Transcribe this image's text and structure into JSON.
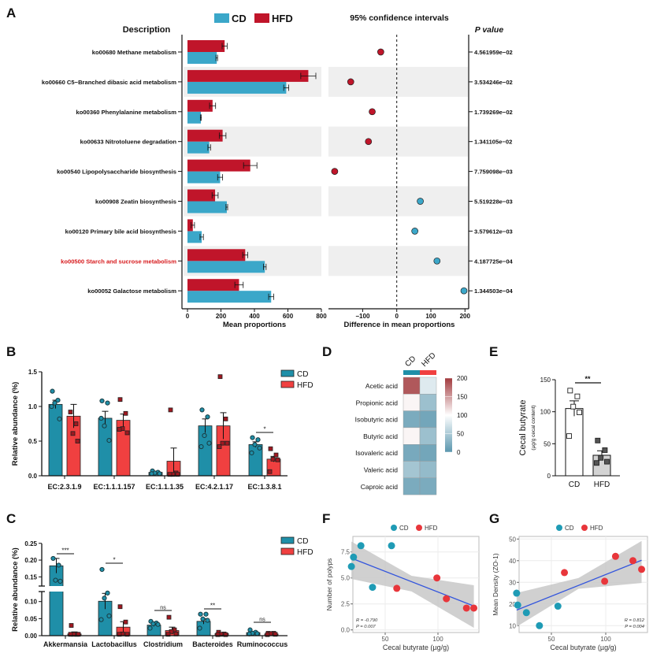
{
  "figure": {
    "panel_labels": [
      "A",
      "B",
      "C",
      "D",
      "E",
      "F",
      "G"
    ]
  },
  "chart_data": [
    {
      "type": "bar",
      "orientation": "horizontal",
      "title": "Description",
      "categories": [
        "ko00680 Methane metabolism",
        "ko00660 C5−Branched dibasic acid metabolism",
        "ko00360 Phenylalanine metabolism",
        "ko00633 Nitrotoluene degradation",
        "ko00540 Lipopolysaccharide biosynthesis",
        "ko00908 Zeatin biosynthesis",
        "ko00120 Primary bile acid biosynthesis",
        "ko00500 Starch and sucrose metabolism",
        "ko00052 Galactose metabolism"
      ],
      "highlight_index": 7,
      "highlight_color": "#d7191c",
      "series": [
        {
          "name": "CD",
          "color": "#3ba7c9",
          "values": [
            175,
            590,
            80,
            130,
            195,
            235,
            85,
            462,
            500
          ],
          "errors": [
            5,
            15,
            3,
            8,
            15,
            5,
            10,
            8,
            15
          ]
        },
        {
          "name": "HFD",
          "color": "#c0152a",
          "values": [
            222,
            722,
            150,
            210,
            375,
            165,
            32,
            345,
            308
          ],
          "errors": [
            15,
            45,
            18,
            20,
            40,
            18,
            10,
            15,
            25
          ]
        }
      ],
      "xlabel": "Mean proportions",
      "xticks": [
        "0",
        "200",
        "400",
        "600",
        "800"
      ],
      "xlim": [
        0,
        800
      ],
      "shaded_rows": true
    },
    {
      "type": "scatter",
      "title": "95% confidence intervals",
      "xlabel": "Difference in mean proportions",
      "xticks": [
        "−100",
        "0",
        "100",
        "200"
      ],
      "xlim": [
        -200,
        210
      ],
      "values": [
        -47,
        -135,
        -72,
        -83,
        -182,
        69,
        53,
        118,
        197
      ],
      "reference_line": 0,
      "p_value_title": "P value",
      "p_values": [
        "4.561959e−02",
        "3.534246e−02",
        "1.739269e−02",
        "1.341105e−02",
        "7.759098e−03",
        "5.519228e−03",
        "3.579612e−03",
        "4.187725e−04",
        "1.344503e−04"
      ]
    },
    {
      "type": "bar",
      "ylabel": "Relative abundance (%)",
      "yticks": [
        "0.0",
        "0.5",
        "1.0",
        "1.5"
      ],
      "ylim": [
        0,
        1.5
      ],
      "categories": [
        "EC:2.3.1.9",
        "EC:1.1.1.157",
        "EC:1.1.1.35",
        "EC:4.2.1.17",
        "EC:1.3.8.1"
      ],
      "legend_position": "top-right",
      "series": [
        {
          "name": "CD",
          "color": "#1f8fa8",
          "values": [
            1.03,
            0.83,
            0.05,
            0.72,
            0.45
          ],
          "errors": [
            0.06,
            0.1,
            0.01,
            0.1,
            0.04
          ],
          "points": [
            [
              1.22,
              1.09,
              1.05,
              0.82,
              1.0
            ],
            [
              1.08,
              1.05,
              0.72,
              0.51,
              0.83
            ],
            [
              0.07,
              0.05,
              0.04,
              0.03,
              0.03
            ],
            [
              0.95,
              0.85,
              0.58,
              0.47,
              0.42
            ],
            [
              0.55,
              0.52,
              0.45,
              0.4,
              0.33
            ]
          ]
        },
        {
          "name": "HFD",
          "color": "#f04040",
          "values": [
            0.86,
            0.8,
            0.21,
            0.72,
            0.24
          ],
          "errors": [
            0.17,
            0.09,
            0.19,
            0.19,
            0.04
          ],
          "points": [
            [
              0.92,
              0.75,
              0.61,
              0.5
            ],
            [
              1.1,
              0.9,
              0.68,
              0.62,
              0.67
            ],
            [
              0.95,
              0.04,
              0.02,
              0.02,
              0.02
            ],
            [
              1.43,
              0.82,
              0.47,
              0.47,
              0.42
            ],
            [
              0.39,
              0.3,
              0.24,
              0.23,
              0.06
            ]
          ]
        }
      ],
      "significance": [
        "",
        "",
        "",
        "",
        "*"
      ]
    },
    {
      "type": "bar",
      "ylabel": "Relative abundance (%)",
      "yticks": [
        "0.00",
        "0.05",
        "0.10",
        "0.15",
        "0.20",
        "0.25"
      ],
      "ylim": [
        0,
        0.25
      ],
      "axis_break": [
        0.125,
        0.125
      ],
      "categories": [
        "Akkermansia",
        "Lactobacillus",
        "Clostridium",
        "Bacteroides",
        "Ruminococcus"
      ],
      "legend_position": "top-right",
      "series": [
        {
          "name": "CD",
          "color": "#1f8fa8",
          "values": [
            0.183,
            0.101,
            0.031,
            0.042,
            0.009
          ],
          "errors": [
            0.022,
            0.023,
            0.004,
            0.008,
            0.002
          ],
          "points": [
            [
              0.205,
              0.185,
              0.14,
              0.137
            ],
            [
              0.172,
              0.125,
              0.11,
              0.058,
              0.047
            ],
            [
              0.042,
              0.037,
              0.035,
              0.033,
              0.022
            ],
            [
              0.063,
              0.063,
              0.049,
              0.045,
              0.022
            ],
            [
              0.017,
              0.01,
              0.007,
              0.006,
              0.005
            ]
          ]
        },
        {
          "name": "HFD",
          "color": "#f04040",
          "values": [
            0.005,
            0.025,
            0.015,
            0.006,
            0.005
          ],
          "errors": [
            0.006,
            0.016,
            0.01,
            0.002,
            0.001
          ],
          "points": [
            [
              0.03,
              0.004,
              0.004,
              0.004,
              0.004
            ],
            [
              0.085,
              0.04,
              0.005,
              0.004,
              0.004
            ],
            [
              0.054,
              0.017,
              0.012,
              0.005,
              0.004
            ],
            [
              0.01,
              0.005,
              0.004,
              0.003,
              0.003
            ],
            [
              0.007,
              0.007,
              0.006,
              0.004,
              0.003
            ]
          ]
        }
      ],
      "significance": [
        "***",
        "*",
        "ns",
        "**",
        "ns"
      ]
    },
    {
      "type": "heatmap",
      "columns": [
        "CD",
        "HFD"
      ],
      "column_colors": [
        "#1f8fa8",
        "#f04040"
      ],
      "rows": [
        "Acetic acid",
        "Propionic acid",
        "Isobutyric acid",
        "Butyric acid",
        "Isovaleric acid",
        "Valeric acid",
        "Caproic acid"
      ],
      "values": [
        [
          185,
          80
        ],
        [
          105,
          40
        ],
        [
          20,
          15
        ],
        [
          105,
          40
        ],
        [
          18,
          15
        ],
        [
          45,
          35
        ],
        [
          20,
          20
        ]
      ],
      "range": [
        0,
        200
      ],
      "colorscale": [
        "#5a96ae",
        "#ffffff",
        "#a23a3e"
      ],
      "colorbar_ticks": [
        "200",
        "150",
        "100",
        "50",
        "0"
      ]
    },
    {
      "type": "bar",
      "categories": [
        "CD",
        "HFD"
      ],
      "values": [
        105,
        32
      ],
      "errors": [
        12,
        7
      ],
      "colors": [
        "#ffffff",
        "#d3d3d3"
      ],
      "points": [
        [
          133,
          124,
          108,
          99,
          62
        ],
        [
          55,
          40,
          28,
          22,
          20
        ]
      ],
      "ylabel": "Cecal butyrate",
      "ylabel_sub": "(µg/g cecal content)",
      "yticks": [
        "0",
        "50",
        "100",
        "150"
      ],
      "ylim": [
        0,
        150
      ],
      "significance": "**"
    },
    {
      "type": "scatter",
      "legend": [
        {
          "name": "CD",
          "color": "#1f9bb5"
        },
        {
          "name": "HFD",
          "color": "#e8363b"
        }
      ],
      "series": [
        {
          "name": "CD",
          "points": [
            [
              18,
              6.1
            ],
            [
              20,
              7.0
            ],
            [
              27,
              8.1
            ],
            [
              38,
              4.1
            ],
            [
              56,
              8.1
            ]
          ]
        },
        {
          "name": "HFD",
          "points": [
            [
              61,
              4.0
            ],
            [
              99,
              5.0
            ],
            [
              108,
              3.0
            ],
            [
              127,
              2.1
            ],
            [
              134,
              2.1
            ]
          ]
        }
      ],
      "fit": {
        "x": [
          18,
          134
        ],
        "y": [
          6.9,
          2.3
        ],
        "color": "#3355dd"
      },
      "ci_band": {
        "x": [
          18,
          75,
          134
        ],
        "lower": [
          4.9,
          3.7,
          0.2
        ],
        "upper": [
          8.5,
          5.2,
          4.3
        ]
      },
      "xlabel": "Cecal butyrate (µg/g)",
      "ylabel": "Number of polyps",
      "xticks": [
        "50",
        "100"
      ],
      "yticks": [
        "0.0",
        "2.5",
        "5.0",
        "7.5"
      ],
      "annotation": [
        "R = -0.790",
        "P = 0.007"
      ]
    },
    {
      "type": "scatter",
      "legend": [
        {
          "name": "CD",
          "color": "#1f9bb5"
        },
        {
          "name": "HFD",
          "color": "#e8363b"
        }
      ],
      "series": [
        {
          "name": "CD",
          "points": [
            [
              18,
              25
            ],
            [
              19,
              19.5
            ],
            [
              27,
              16
            ],
            [
              39,
              10
            ],
            [
              56,
              19
            ]
          ]
        },
        {
          "name": "HFD",
          "points": [
            [
              62,
              34.5
            ],
            [
              99,
              30.5
            ],
            [
              109,
              42
            ],
            [
              125,
              40
            ],
            [
              133,
              36
            ]
          ]
        }
      ],
      "fit": {
        "x": [
          18,
          133
        ],
        "y": [
          17.2,
          40.2
        ],
        "color": "#3355dd"
      },
      "ci_band": {
        "x": [
          18,
          75,
          133
        ],
        "lower": [
          9.5,
          27,
          29.7
        ],
        "upper": [
          25.1,
          32,
          49.1
        ]
      },
      "xlabel": "Cecal butyrate (µg/g)",
      "ylabel": "Mean Density (ZO-1)",
      "xticks": [
        "50",
        "100"
      ],
      "yticks": [
        "10",
        "20",
        "30",
        "40",
        "50"
      ],
      "annotation": [
        "R = 0.812",
        "P = 0.004"
      ]
    }
  ]
}
